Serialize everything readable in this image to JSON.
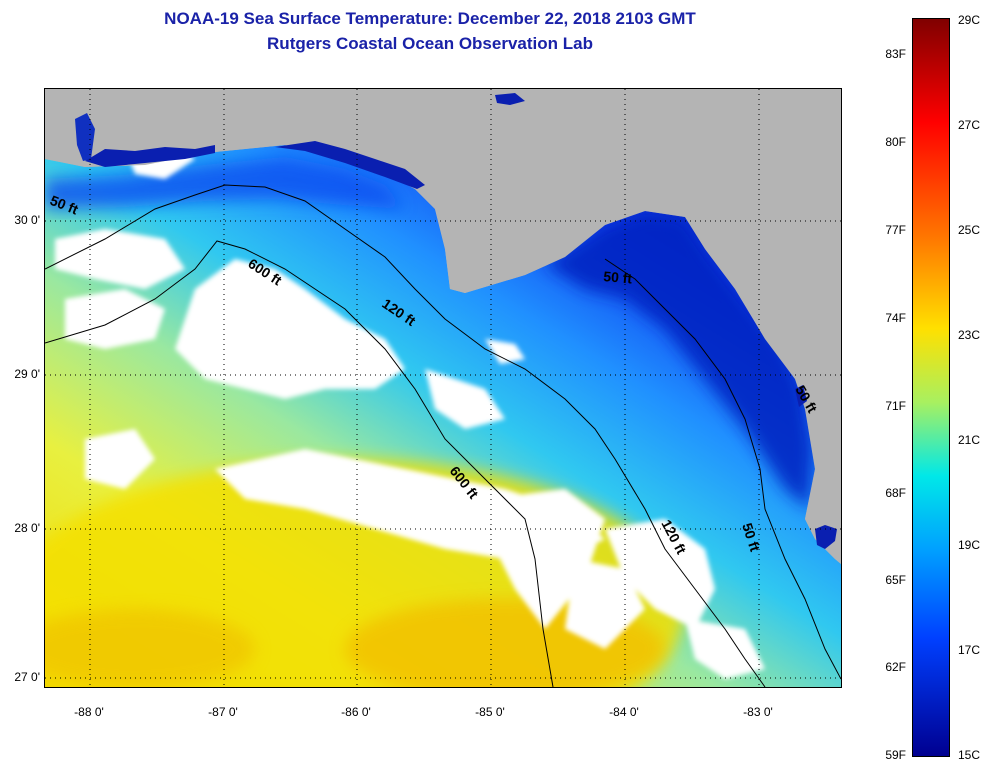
{
  "header": {
    "title": "NOAA-19 Sea Surface Temperature:  December 22, 2018 2103 GMT",
    "subtitle": "Rutgers Coastal Ocean Observation Lab"
  },
  "map": {
    "lon_range": [
      -88.3,
      -82.45
    ],
    "lat_range": [
      26.95,
      30.85
    ],
    "lat_ticks": [
      "30 0'",
      "29 0'",
      "28 0'",
      "27 0'"
    ],
    "lon_ticks": [
      "-88 0'",
      "-87 0'",
      "-86 0'",
      "-85 0'",
      "-84 0'",
      "-83 0'"
    ],
    "isobaths": [
      "50 ft",
      "600 ft",
      "120 ft",
      "50 ft",
      "600 ft",
      "120 ft",
      "50 ft",
      "50 ft"
    ],
    "colors": {
      "land": "#b4b4b4",
      "cloud": "#ffffff",
      "warm": "#ffe020",
      "cool": "#0028d0"
    }
  },
  "colorbar": {
    "fahrenheit": [
      "83F",
      "80F",
      "77F",
      "74F",
      "71F",
      "68F",
      "65F",
      "62F",
      "59F"
    ],
    "celsius": [
      "29C",
      "27C",
      "25C",
      "23C",
      "21C",
      "19C",
      "17C",
      "15C"
    ],
    "range_c": [
      15,
      29
    ],
    "range_f": [
      59,
      84.2
    ]
  }
}
